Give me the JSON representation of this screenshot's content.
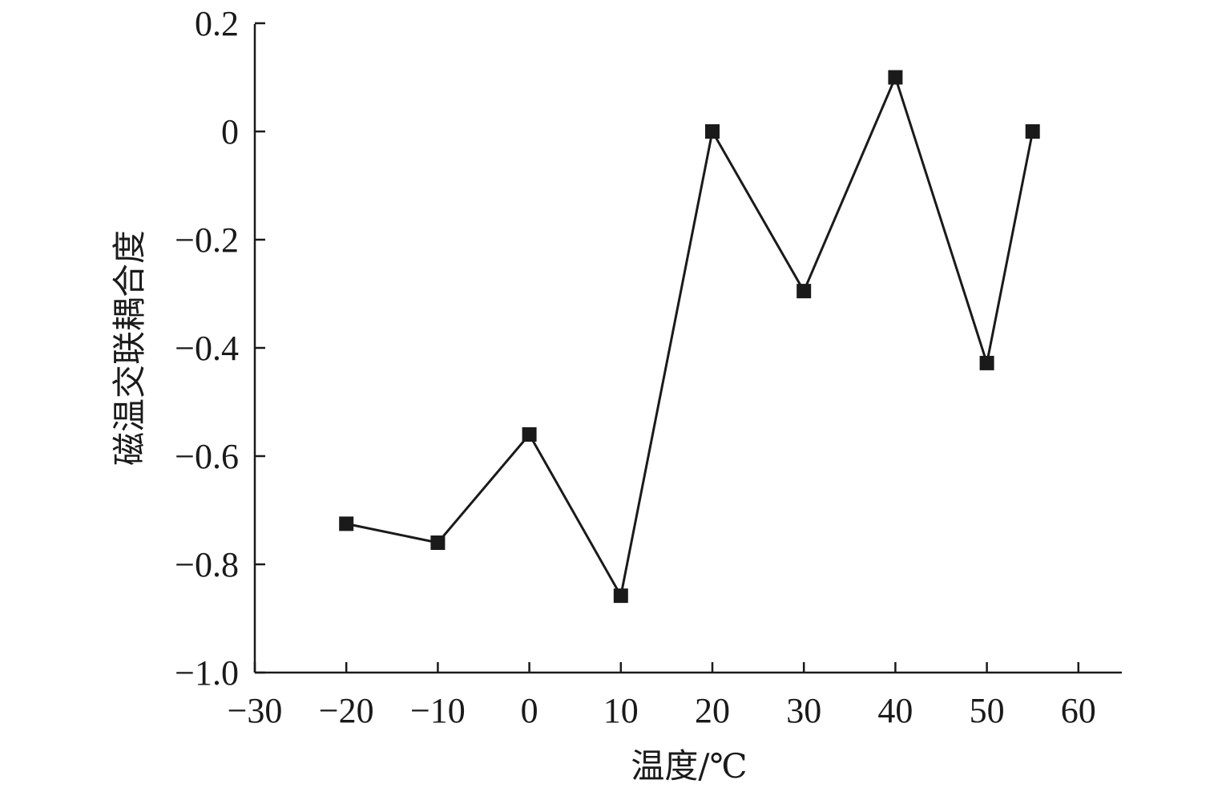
{
  "chart_data": {
    "type": "line",
    "title": "",
    "xlabel": "温度/℃",
    "ylabel": "磁温交联耦合度",
    "xlim": [
      -30,
      65
    ],
    "ylim": [
      -1.0,
      0.2
    ],
    "x_ticks": [
      -30,
      -20,
      -10,
      0,
      10,
      20,
      30,
      40,
      50,
      60
    ],
    "x_tick_labels": [
      "−30",
      "−20",
      "−10",
      "0",
      "10",
      "20",
      "30",
      "40",
      "50",
      "60"
    ],
    "y_ticks": [
      -1.0,
      -0.8,
      -0.6,
      -0.4,
      -0.2,
      0,
      0.2
    ],
    "y_tick_labels": [
      "−1.0",
      "−0.8",
      "−0.6",
      "−0.4",
      "−0.2",
      "0",
      "0.2"
    ],
    "grid": false,
    "legend": false,
    "series": [
      {
        "marker": "square",
        "color": "#1a1a1a",
        "x": [
          -20,
          -10,
          0,
          10,
          20,
          30,
          40,
          50,
          55
        ],
        "y": [
          -0.725,
          -0.76,
          -0.56,
          -0.858,
          0.0,
          -0.295,
          0.1,
          -0.428,
          0.0
        ]
      }
    ]
  }
}
